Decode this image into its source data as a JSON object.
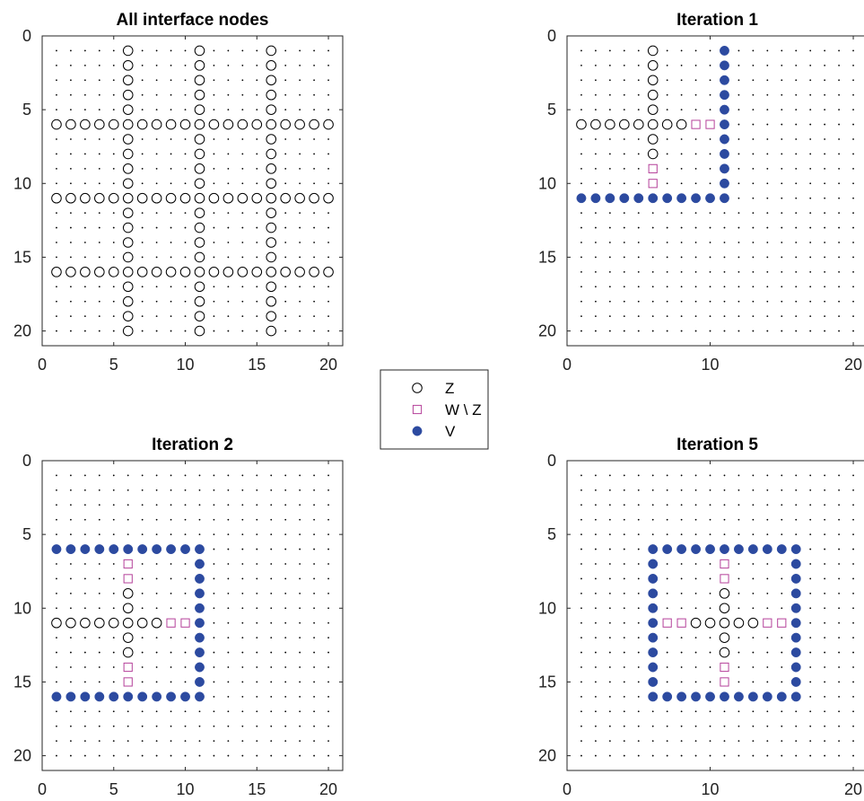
{
  "colors": {
    "Z": "#000000",
    "W_minus_Z": "#b5419a",
    "V": "#2c4aa0",
    "grid_dot": "#000000"
  },
  "legend": {
    "placement": "center",
    "items": [
      {
        "key": "Z",
        "label": "Z",
        "marker": "circle-open"
      },
      {
        "key": "W_minus_Z",
        "label": "W \\ Z",
        "marker": "square-open"
      },
      {
        "key": "V",
        "label": "V",
        "marker": "circle-filled"
      }
    ]
  },
  "chart_data": [
    {
      "type": "scatter",
      "title": "All interface nodes",
      "xlim": [
        0,
        21
      ],
      "ylim": [
        0,
        21
      ],
      "y_reversed": true,
      "xticks": [
        0,
        5,
        10,
        15,
        20
      ],
      "yticks": [
        0,
        5,
        10,
        15,
        20
      ],
      "grid_nodes": {
        "from": 1,
        "to": 20
      },
      "series": [
        {
          "name": "Z",
          "lines": {
            "cols": [
              6,
              11,
              16
            ],
            "rows": [
              6,
              11,
              16
            ],
            "range": [
              1,
              20
            ]
          }
        }
      ]
    },
    {
      "type": "scatter",
      "title": "Iteration 1",
      "xlim": [
        0,
        21
      ],
      "ylim": [
        0,
        21
      ],
      "y_reversed": true,
      "xticks": [
        0,
        10,
        20
      ],
      "yticks": [
        0,
        5,
        10,
        15,
        20
      ],
      "grid_nodes": {
        "from": 1,
        "to": 20
      },
      "series": [
        {
          "name": "Z",
          "points": [
            [
              6,
              1
            ],
            [
              6,
              2
            ],
            [
              6,
              3
            ],
            [
              6,
              4
            ],
            [
              6,
              5
            ],
            [
              1,
              6
            ],
            [
              2,
              6
            ],
            [
              3,
              6
            ],
            [
              4,
              6
            ],
            [
              5,
              6
            ],
            [
              6,
              6
            ],
            [
              7,
              6
            ],
            [
              8,
              6
            ],
            [
              6,
              7
            ],
            [
              6,
              8
            ]
          ]
        },
        {
          "name": "W \\ Z",
          "points": [
            [
              9,
              6
            ],
            [
              10,
              6
            ],
            [
              6,
              9
            ],
            [
              6,
              10
            ]
          ]
        },
        {
          "name": "V",
          "points": [
            [
              11,
              1
            ],
            [
              11,
              2
            ],
            [
              11,
              3
            ],
            [
              11,
              4
            ],
            [
              11,
              5
            ],
            [
              11,
              6
            ],
            [
              11,
              7
            ],
            [
              11,
              8
            ],
            [
              11,
              9
            ],
            [
              11,
              10
            ],
            [
              1,
              11
            ],
            [
              2,
              11
            ],
            [
              3,
              11
            ],
            [
              4,
              11
            ],
            [
              5,
              11
            ],
            [
              6,
              11
            ],
            [
              7,
              11
            ],
            [
              8,
              11
            ],
            [
              9,
              11
            ],
            [
              10,
              11
            ],
            [
              11,
              11
            ]
          ]
        }
      ]
    },
    {
      "type": "scatter",
      "title": "Iteration 2",
      "xlim": [
        0,
        21
      ],
      "ylim": [
        0,
        21
      ],
      "y_reversed": true,
      "xticks": [
        0,
        5,
        10,
        15,
        20
      ],
      "yticks": [
        0,
        5,
        10,
        15,
        20
      ],
      "grid_nodes": {
        "from": 1,
        "to": 20
      },
      "series": [
        {
          "name": "Z",
          "points": [
            [
              6,
              9
            ],
            [
              6,
              10
            ],
            [
              1,
              11
            ],
            [
              2,
              11
            ],
            [
              3,
              11
            ],
            [
              4,
              11
            ],
            [
              5,
              11
            ],
            [
              6,
              11
            ],
            [
              7,
              11
            ],
            [
              8,
              11
            ],
            [
              6,
              12
            ],
            [
              6,
              13
            ]
          ]
        },
        {
          "name": "W \\ Z",
          "points": [
            [
              6,
              7
            ],
            [
              6,
              8
            ],
            [
              9,
              11
            ],
            [
              10,
              11
            ],
            [
              6,
              14
            ],
            [
              6,
              15
            ]
          ]
        },
        {
          "name": "V",
          "points": [
            [
              1,
              6
            ],
            [
              2,
              6
            ],
            [
              3,
              6
            ],
            [
              4,
              6
            ],
            [
              5,
              6
            ],
            [
              6,
              6
            ],
            [
              7,
              6
            ],
            [
              8,
              6
            ],
            [
              9,
              6
            ],
            [
              10,
              6
            ],
            [
              11,
              6
            ],
            [
              11,
              7
            ],
            [
              11,
              8
            ],
            [
              11,
              9
            ],
            [
              11,
              10
            ],
            [
              11,
              11
            ],
            [
              11,
              12
            ],
            [
              11,
              13
            ],
            [
              11,
              14
            ],
            [
              11,
              15
            ],
            [
              1,
              16
            ],
            [
              2,
              16
            ],
            [
              3,
              16
            ],
            [
              4,
              16
            ],
            [
              5,
              16
            ],
            [
              6,
              16
            ],
            [
              7,
              16
            ],
            [
              8,
              16
            ],
            [
              9,
              16
            ],
            [
              10,
              16
            ],
            [
              11,
              16
            ]
          ]
        }
      ]
    },
    {
      "type": "scatter",
      "title": "Iteration 5",
      "xlim": [
        0,
        21
      ],
      "ylim": [
        0,
        21
      ],
      "y_reversed": true,
      "xticks": [
        0,
        10,
        20
      ],
      "yticks": [
        0,
        5,
        10,
        15,
        20
      ],
      "grid_nodes": {
        "from": 1,
        "to": 20
      },
      "series": [
        {
          "name": "Z",
          "points": [
            [
              11,
              9
            ],
            [
              11,
              10
            ],
            [
              9,
              11
            ],
            [
              10,
              11
            ],
            [
              11,
              11
            ],
            [
              12,
              11
            ],
            [
              13,
              11
            ],
            [
              11,
              12
            ],
            [
              11,
              13
            ]
          ]
        },
        {
          "name": "W \\ Z",
          "points": [
            [
              11,
              7
            ],
            [
              11,
              8
            ],
            [
              7,
              11
            ],
            [
              8,
              11
            ],
            [
              14,
              11
            ],
            [
              15,
              11
            ],
            [
              11,
              14
            ],
            [
              11,
              15
            ]
          ]
        },
        {
          "name": "V",
          "points": [
            [
              6,
              6
            ],
            [
              7,
              6
            ],
            [
              8,
              6
            ],
            [
              9,
              6
            ],
            [
              10,
              6
            ],
            [
              11,
              6
            ],
            [
              12,
              6
            ],
            [
              13,
              6
            ],
            [
              14,
              6
            ],
            [
              15,
              6
            ],
            [
              16,
              6
            ],
            [
              6,
              7
            ],
            [
              16,
              7
            ],
            [
              6,
              8
            ],
            [
              16,
              8
            ],
            [
              6,
              9
            ],
            [
              16,
              9
            ],
            [
              6,
              10
            ],
            [
              16,
              10
            ],
            [
              6,
              11
            ],
            [
              16,
              11
            ],
            [
              6,
              12
            ],
            [
              16,
              12
            ],
            [
              6,
              13
            ],
            [
              16,
              13
            ],
            [
              6,
              14
            ],
            [
              16,
              14
            ],
            [
              6,
              15
            ],
            [
              16,
              15
            ],
            [
              6,
              16
            ],
            [
              7,
              16
            ],
            [
              8,
              16
            ],
            [
              9,
              16
            ],
            [
              10,
              16
            ],
            [
              11,
              16
            ],
            [
              12,
              16
            ],
            [
              13,
              16
            ],
            [
              14,
              16
            ],
            [
              15,
              16
            ],
            [
              16,
              16
            ]
          ]
        }
      ]
    }
  ]
}
